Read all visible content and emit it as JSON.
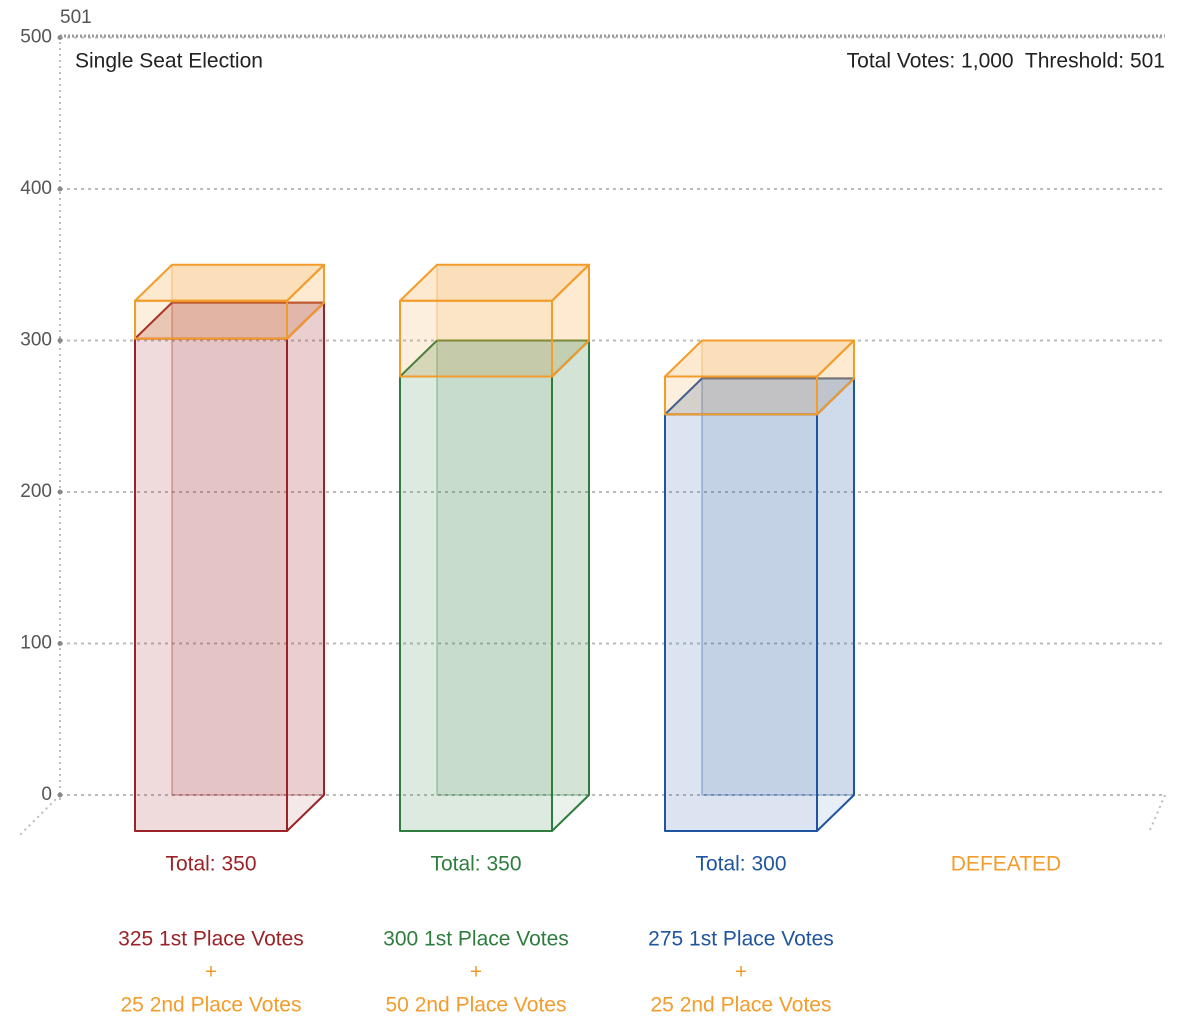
{
  "chart_data": {
    "type": "bar3d_stacked",
    "title": "Single Seat Election",
    "annotation": "Total Votes: 1,000  Threshold: 501",
    "threshold": 501,
    "categories": [
      "Total: 350",
      "Total: 350",
      "Total: 300",
      "DEFEATED"
    ],
    "category_colors": [
      "#9b2226",
      "#2e7d3e",
      "#1f55a0",
      "#f39c2b"
    ],
    "separator": "+",
    "series": [
      {
        "values": [
          325,
          300,
          275,
          null
        ],
        "value_labels": [
          "325 1st Place Votes",
          "300 1st Place Votes",
          "275 1st Place Votes",
          null
        ]
      },
      {
        "color": "#f39c2b",
        "values": [
          25,
          50,
          25,
          null
        ],
        "value_labels": [
          "25 2nd Place Votes",
          "50 2nd Place Votes",
          "25 2nd Place Votes",
          null
        ]
      }
    ],
    "ylim": [
      0,
      501
    ],
    "yticks": [
      0,
      100,
      200,
      300,
      400,
      500
    ],
    "grid": true
  }
}
